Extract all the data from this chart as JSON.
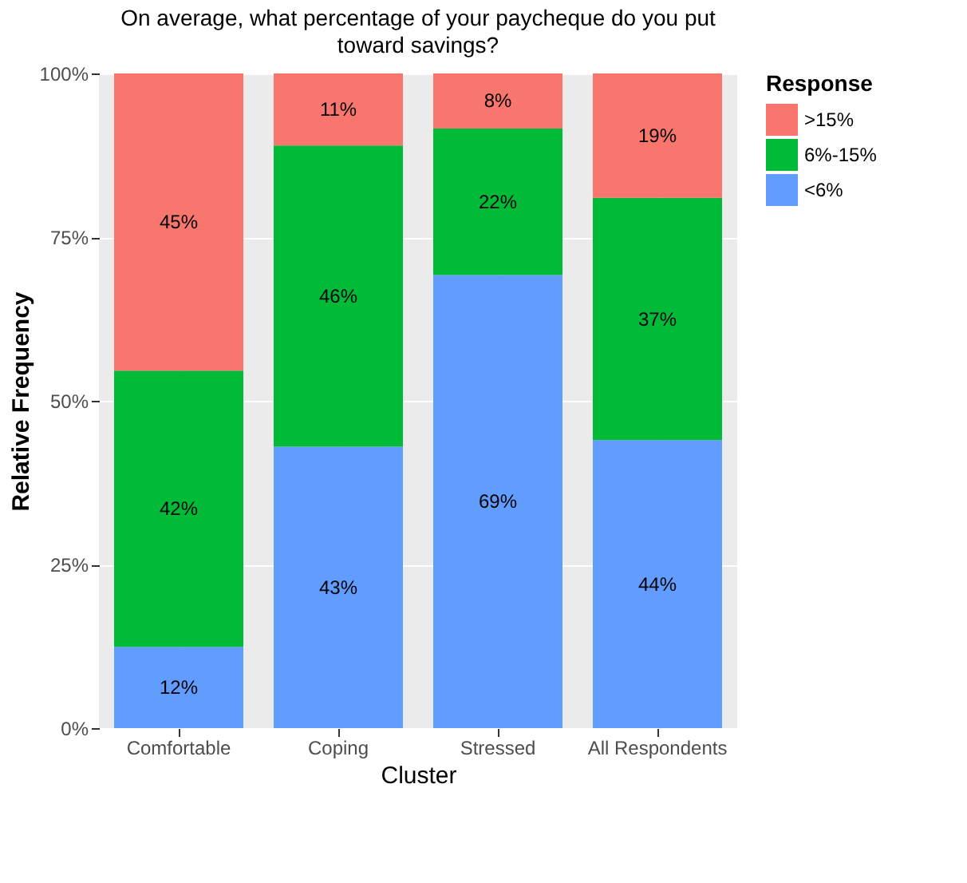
{
  "chart_data": {
    "type": "bar",
    "stacked": true,
    "title": "On average, what percentage of your paycheque do you put toward savings?",
    "xlabel": "Cluster",
    "ylabel": "Relative Frequency",
    "legend_title": "Response",
    "categories": [
      "Comfortable",
      "Coping",
      "Stressed",
      "All Respondents"
    ],
    "series": [
      {
        "name": "<6%",
        "color": "#619cff",
        "values": [
          12.4,
          43,
          69.2,
          44
        ],
        "value_labels": [
          "12%",
          "43%",
          "69%",
          "44%"
        ]
      },
      {
        "name": "6%-15%",
        "color": "#00ba38",
        "values": [
          42.2,
          46,
          22.4,
          37
        ],
        "value_labels": [
          "42%",
          "46%",
          "22%",
          "37%"
        ]
      },
      {
        "name": ">15%",
        "color": "#f8766d",
        "values": [
          45.4,
          11,
          8.4,
          19
        ],
        "value_labels": [
          "45%",
          "11%",
          "8%",
          "19%"
        ]
      }
    ],
    "ylim": [
      0,
      100
    ],
    "yticks": [
      {
        "value": 0,
        "label": "0%"
      },
      {
        "value": 25,
        "label": "25%"
      },
      {
        "value": 50,
        "label": "50%"
      },
      {
        "value": 75,
        "label": "75%"
      },
      {
        "value": 100,
        "label": "100%"
      }
    ],
    "grid": true,
    "legend": "right"
  }
}
